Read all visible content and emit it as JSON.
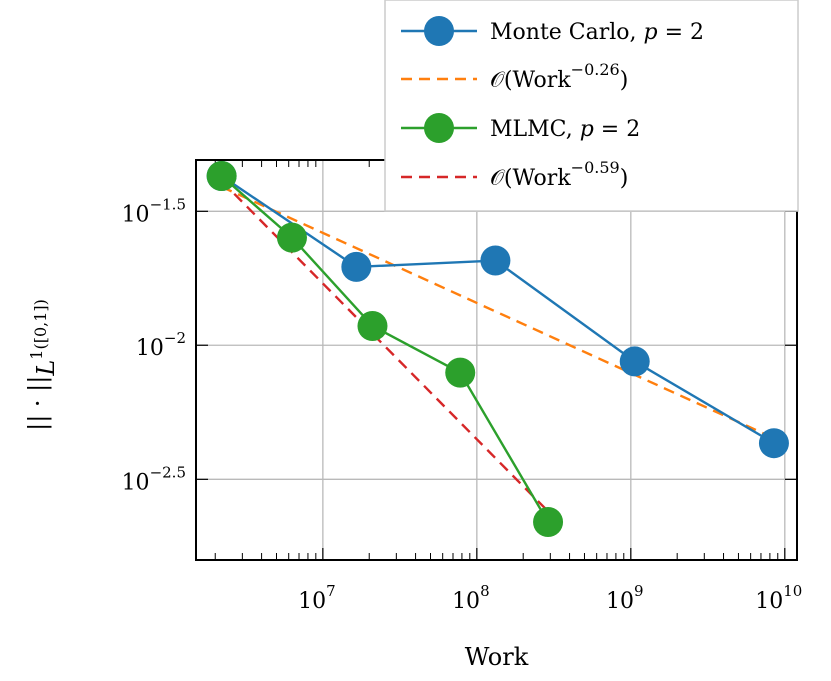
{
  "chart_data": {
    "type": "line",
    "x_scale": "log",
    "y_scale": "log",
    "xlim": [
      1500000,
      12000000000
    ],
    "ylim": [
      0.00158,
      0.0491
    ],
    "grid": true,
    "legend_position": "top-right",
    "xlabel": "Work",
    "ylabel": "|| · ||L1([0,1])",
    "x_ticks": [
      {
        "value": 10000000,
        "base": "10",
        "exp": "7"
      },
      {
        "value": 100000000,
        "base": "10",
        "exp": "8"
      },
      {
        "value": 1000000000,
        "base": "10",
        "exp": "9"
      },
      {
        "value": 10000000000,
        "base": "10",
        "exp": "10"
      }
    ],
    "y_ticks": [
      {
        "value": 0.0316,
        "base": "10",
        "exp": "−1.5"
      },
      {
        "value": 0.01,
        "base": "10",
        "exp": "−2"
      },
      {
        "value": 0.00316,
        "base": "10",
        "exp": "−2.5"
      }
    ],
    "series": [
      {
        "name": "Monte Carlo, p = 2",
        "style": "solid-marker",
        "color": "#1f77b4",
        "x": [
          2200000,
          16500000,
          132000000,
          1060000000,
          8500000000
        ],
        "y": [
          0.0428,
          0.0196,
          0.0207,
          0.0087,
          0.00431
        ]
      },
      {
        "name": "O(Work^-0.26)",
        "style": "dashed",
        "color": "#ff7f0e",
        "x": [
          2200000,
          8500000000
        ],
        "y": [
          0.039,
          0.0045
        ]
      },
      {
        "name": "MLMC, p = 2",
        "style": "solid-marker",
        "color": "#2ca02c",
        "x": [
          2200000,
          6300000,
          21000000,
          78000000,
          290000000
        ],
        "y": [
          0.0428,
          0.0252,
          0.0118,
          0.0079,
          0.00219
        ]
      },
      {
        "name": "O(Work^-0.59)",
        "style": "dashed",
        "color": "#d62728",
        "x": [
          2200000,
          290000000
        ],
        "y": [
          0.041,
          0.0024
        ]
      }
    ],
    "legend": [
      {
        "series": 0,
        "text": "Monte Carlo, ",
        "math_var": "p",
        "math_rest": " = 2"
      },
      {
        "series": 1,
        "text_pre": "𝒪(Work",
        "sup": "−0.26",
        "text_post": ")"
      },
      {
        "series": 2,
        "text": "MLMC, ",
        "math_var": "p",
        "math_rest": " = 2"
      },
      {
        "series": 3,
        "text_pre": "𝒪(Work",
        "sup": "−0.59",
        "text_post": ")"
      }
    ]
  }
}
